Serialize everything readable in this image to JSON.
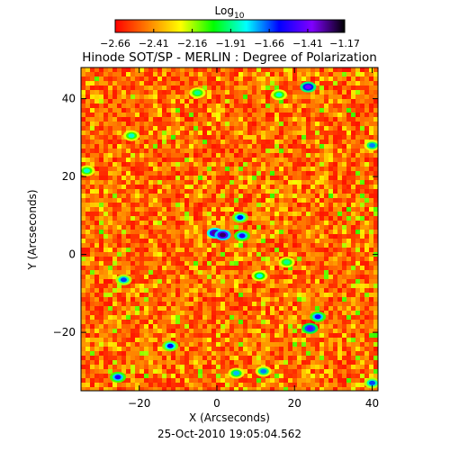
{
  "chart_data": {
    "type": "heatmap",
    "title": "Hinode SOT/SP - MERLIN : Degree of Polarization",
    "subtitle": "25-Oct-2010 19:05:04.562",
    "xlabel": "X (Arcseconds)",
    "ylabel": "Y (Arcseconds)",
    "xlim": [
      -35,
      41.5
    ],
    "ylim": [
      -35,
      48
    ],
    "xticks": [
      -20,
      0,
      20,
      40
    ],
    "yticks": [
      -20,
      0,
      20,
      40
    ],
    "xtick_labels": [
      "−20",
      "0",
      "20",
      "40"
    ],
    "ytick_labels": [
      "−20",
      "0",
      "20",
      "40"
    ],
    "grid": false,
    "colorbar": {
      "title_base": "Log",
      "title_sub": "10",
      "position": "top",
      "range": [
        -2.66,
        -1.17
      ],
      "ticks": [
        -2.66,
        -2.41,
        -2.16,
        -1.91,
        -1.66,
        -1.41,
        -1.17
      ],
      "tick_labels": [
        "−2.66",
        "−2.41",
        "−2.16",
        "−1.91",
        "−1.66",
        "−1.41",
        "−1.17"
      ],
      "colormap": [
        "#ff0000",
        "#ff8000",
        "#ffff00",
        "#00ff00",
        "#00ffff",
        "#0000ff",
        "#8000ff",
        "#000000"
      ]
    },
    "features": [
      {
        "x": -0.5,
        "y": 5.5,
        "value": -1.3
      },
      {
        "x": 1.5,
        "y": 5.0,
        "value": -1.25
      },
      {
        "x": 6.5,
        "y": 4.8,
        "value": -1.55
      },
      {
        "x": 6.0,
        "y": 9.5,
        "value": -1.6
      },
      {
        "x": 23.5,
        "y": 43.0,
        "value": -1.4
      },
      {
        "x": 24.0,
        "y": -19.0,
        "value": -1.45
      },
      {
        "x": 26.0,
        "y": -16.0,
        "value": -1.55
      },
      {
        "x": -25.5,
        "y": -31.5,
        "value": -1.55
      },
      {
        "x": -12.0,
        "y": -23.5,
        "value": -1.6
      },
      {
        "x": -24.0,
        "y": -6.5,
        "value": -1.65
      },
      {
        "x": 40.0,
        "y": -33.0,
        "value": -1.65
      },
      {
        "x": 40.0,
        "y": 28.0,
        "value": -1.7
      },
      {
        "x": 12.0,
        "y": -30.0,
        "value": -1.7
      },
      {
        "x": 5.0,
        "y": -30.5,
        "value": -1.75
      },
      {
        "x": 11.0,
        "y": -5.5,
        "value": -1.8
      },
      {
        "x": -22.0,
        "y": 30.5,
        "value": -1.85
      },
      {
        "x": 16.0,
        "y": 41.0,
        "value": -1.85
      },
      {
        "x": -5.0,
        "y": 41.5,
        "value": -1.9
      },
      {
        "x": 18.0,
        "y": -2.0,
        "value": -1.9
      },
      {
        "x": -33.5,
        "y": 21.5,
        "value": -1.85
      }
    ]
  }
}
